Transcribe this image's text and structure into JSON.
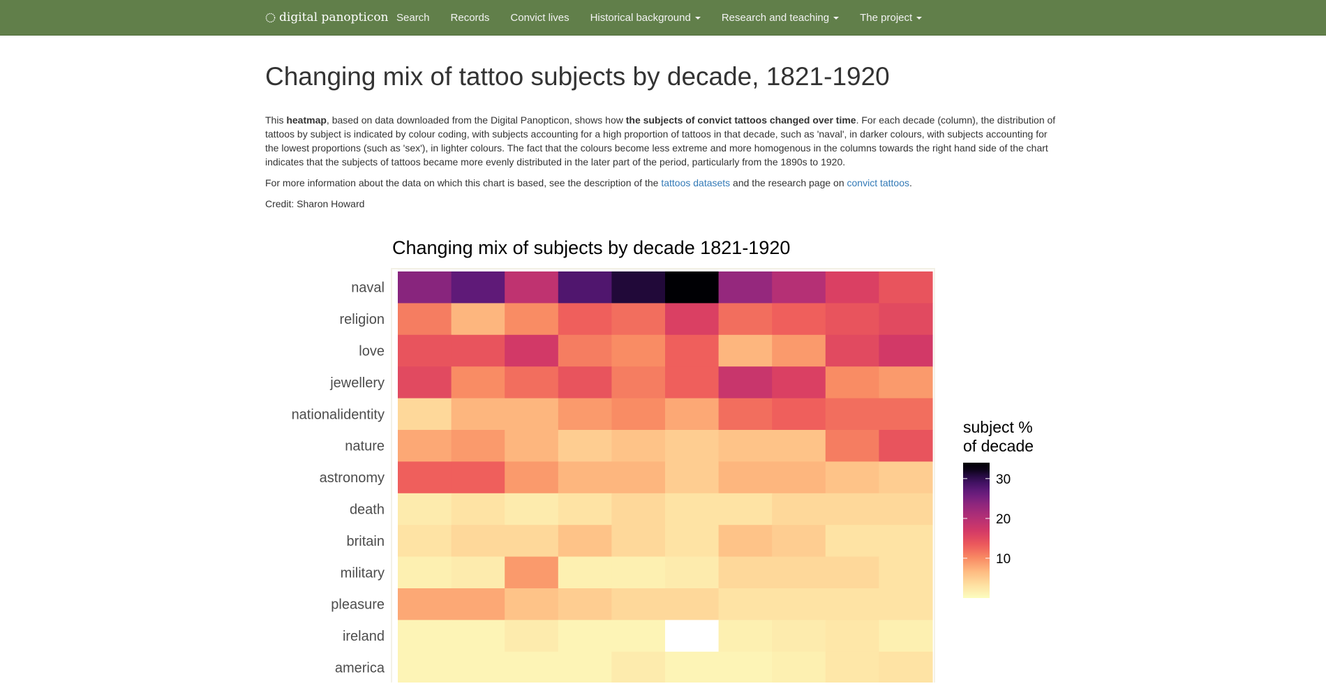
{
  "nav": {
    "brand": "digital panopticon",
    "items": [
      {
        "label": "Search",
        "dropdown": false
      },
      {
        "label": "Records",
        "dropdown": false
      },
      {
        "label": "Convict lives",
        "dropdown": false
      },
      {
        "label": "Historical background",
        "dropdown": true
      },
      {
        "label": "Research and teaching",
        "dropdown": true
      },
      {
        "label": "The project",
        "dropdown": true
      }
    ]
  },
  "page": {
    "title": "Changing mix of tattoo subjects by decade, 1821-1920",
    "intro": {
      "t1": "This ",
      "b1": "heatmap",
      "t2": ", based on data downloaded from the Digital Panopticon, shows how ",
      "b2": "the subjects of convict tattoos changed over time",
      "t3": ". For each decade (column), the distribution of tattoos by subject is indicated by colour coding, with subjects accounting for a high proportion of tattoos in that decade, such as 'naval', in darker colours, with subjects accounting for the lowest proportions (such as 'sex'), in lighter colours. The fact that the colours become less extreme and more homogenous in the columns towards the right hand side of the chart indicates that the subjects of tattoos became more evenly distributed in the later part of the period, particularly from the 1890s to 1920."
    },
    "more_info": {
      "t1": "For more information about the data on which this chart is based, see the description of the ",
      "link1": "tattoos datasets",
      "t2": " and the research page on ",
      "link2": "convict tattoos",
      "t3": "."
    },
    "credit": "Credit: Sharon Howard"
  },
  "chart_data": {
    "type": "heatmap",
    "title": "Changing mix of subjects by decade 1821-1920",
    "rows": [
      "naval",
      "religion",
      "love",
      "jewellery",
      "nationalidentity",
      "nature",
      "astronomy",
      "death",
      "britain",
      "military",
      "pleasure",
      "ireland",
      "america"
    ],
    "columns": 10,
    "values": [
      [
        24,
        27,
        19,
        28,
        31,
        33,
        23,
        20,
        16,
        14
      ],
      [
        11,
        7,
        10,
        13,
        12,
        16,
        12,
        13,
        14,
        15
      ],
      [
        14,
        14,
        17,
        11,
        10,
        13,
        7,
        9,
        15,
        17
      ],
      [
        15,
        10,
        12,
        14,
        11,
        13,
        18,
        16,
        10,
        9
      ],
      [
        4,
        7,
        7,
        9,
        10,
        8,
        12,
        13,
        12,
        12
      ],
      [
        8,
        9,
        7,
        5,
        6,
        5,
        6,
        6,
        11,
        14
      ],
      [
        13,
        13,
        9,
        7,
        7,
        5,
        7,
        7,
        6,
        5
      ],
      [
        2,
        3,
        2,
        3,
        4,
        3,
        3,
        4,
        4,
        4
      ],
      [
        3,
        4,
        4,
        6,
        4,
        3,
        6,
        5,
        3,
        3
      ],
      [
        1.5,
        2,
        9,
        1.5,
        1.5,
        2,
        4,
        4,
        4,
        3
      ],
      [
        8,
        8,
        6,
        5,
        4,
        4,
        3,
        3,
        3,
        3
      ],
      [
        1,
        1,
        2,
        1,
        1,
        0,
        1.5,
        2,
        2.5,
        1.5
      ],
      [
        1,
        1,
        1,
        1,
        2,
        1,
        1,
        1.5,
        2.5,
        3
      ]
    ],
    "legend_title": [
      "subject %",
      "of decade"
    ],
    "legend_ticks": [
      30,
      20,
      10
    ],
    "scale_min": 0,
    "scale_max": 33,
    "legend_position": "right",
    "colormap": "magma (reversed)"
  }
}
